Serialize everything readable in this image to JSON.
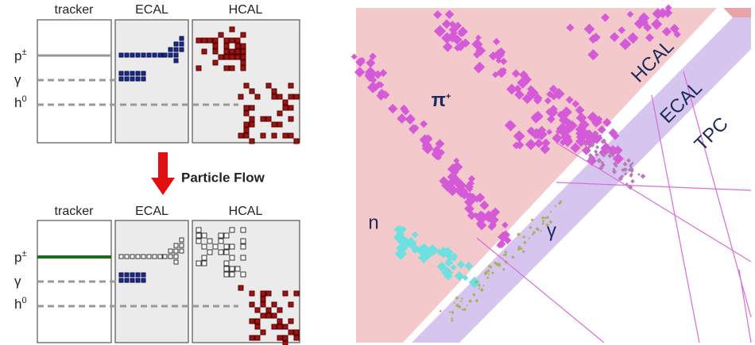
{
  "top_panel": {
    "columns": [
      "tracker",
      "ECAL",
      "HCAL"
    ],
    "rows": [
      {
        "label": "p",
        "sup": "±"
      },
      {
        "label": "γ"
      },
      {
        "label": "h",
        "sup": "0"
      }
    ]
  },
  "arrow_label": "Particle Flow",
  "bottom_panel": {
    "columns": [
      "tracker",
      "ECAL",
      "HCAL"
    ],
    "rows": [
      {
        "label": "p",
        "sup": "±"
      },
      {
        "label": "γ"
      },
      {
        "label": "h",
        "sup": "0"
      }
    ]
  },
  "event_display": {
    "charged": {
      "label": "π",
      "sup": "+"
    },
    "neutron": "n",
    "photon": "γ",
    "layers": [
      "HCAL",
      "ECAL",
      "TPC"
    ]
  }
}
